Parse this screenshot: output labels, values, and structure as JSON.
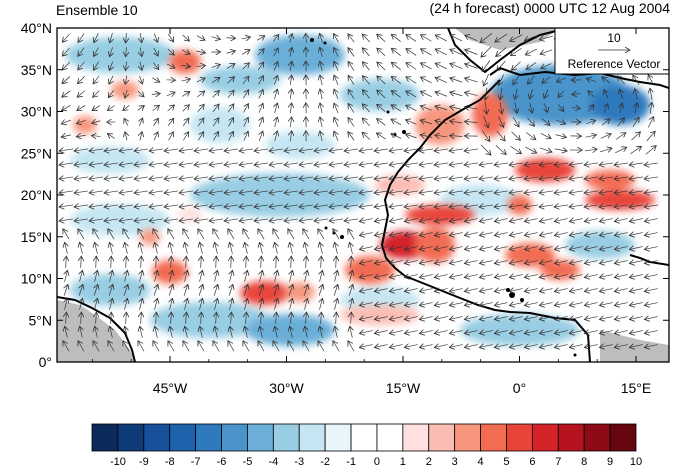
{
  "titles": {
    "left": "Ensemble 10",
    "right": "(24 h forecast) 0000 UTC 12 Aug 2004"
  },
  "map": {
    "lat_labels": [
      "40°N",
      "35°N",
      "30°N",
      "25°N",
      "20°N",
      "15°N",
      "10°N",
      "5°N",
      "0°"
    ],
    "lon_labels": [
      "45°W",
      "30°W",
      "15°W",
      "0°",
      "15°E"
    ],
    "ref_vector": {
      "magnitude": "10",
      "label": "Reference Vector"
    },
    "colors": {
      "land_boundary": "#000000",
      "vector": "#333333",
      "gray_fill": "#bdbdbd"
    }
  },
  "colorbar": {
    "labels": [
      "-10",
      "-9",
      "-8",
      "-7",
      "-6",
      "-5",
      "-4",
      "-3",
      "-2",
      "-1",
      "0",
      "1",
      "2",
      "3",
      "4",
      "5",
      "6",
      "7",
      "8",
      "9",
      "10"
    ],
    "colors": [
      "#0b2a5c",
      "#0e3a78",
      "#17519b",
      "#1e64ad",
      "#2f79bd",
      "#4a94cb",
      "#6bafd8",
      "#98cde3",
      "#c5e6f2",
      "#e8f5fb",
      "#ffffff",
      "#ffffff",
      "#fde0df",
      "#fbbdb3",
      "#f7967f",
      "#f26c52",
      "#e8443a",
      "#d42429",
      "#b5141f",
      "#8c0b16",
      "#650611"
    ]
  }
}
